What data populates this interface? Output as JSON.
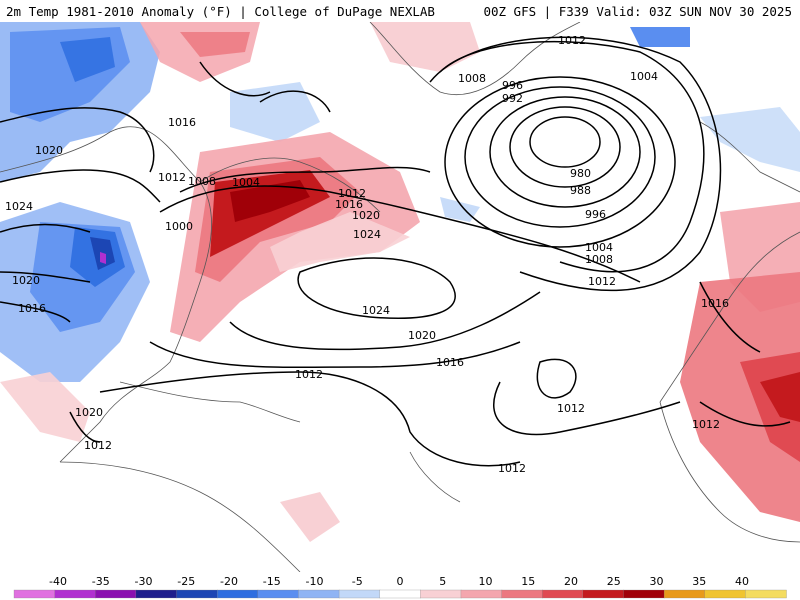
{
  "header": {
    "left_title": "2m Temp 1981-2010 Anomaly (°F) | College of DuPage NEXLAB",
    "right_title": "00Z GFS | F339 Valid: 03Z SUN NOV 30 2025"
  },
  "contour_labels": [
    "1012",
    "1008",
    "996",
    "992",
    "1004",
    "1016",
    "1020",
    "980",
    "988",
    "1008",
    "1012",
    "1004",
    "1000",
    "1024",
    "996",
    "1004",
    "1008",
    "1012",
    "1020",
    "1024",
    "1016",
    "1020",
    "1016",
    "1012",
    "1012",
    "1012",
    "1016",
    "1012",
    "1024",
    "1020",
    "1016",
    "1012",
    "1020",
    "1012"
  ],
  "colorbar": {
    "ticks": [
      "-40",
      "-35",
      "-30",
      "-25",
      "-20",
      "-15",
      "-10",
      "-5",
      "0",
      "5",
      "10",
      "15",
      "20",
      "25",
      "30",
      "35",
      "40"
    ],
    "colors": [
      "#e070e0",
      "#b030d0",
      "#8a10b0",
      "#1e1e8c",
      "#1c46b4",
      "#2e6ee0",
      "#5a8ef0",
      "#8fb4f4",
      "#c2d8f8",
      "#ffffff",
      "#f8d0d4",
      "#f4a6ae",
      "#ec7880",
      "#e04a52",
      "#c41a1e",
      "#a00008",
      "#e89a1a",
      "#f0c430",
      "#f4dc60"
    ]
  },
  "style": {
    "land_outline": "#555555",
    "contour": "#000000",
    "warm": "#e0464c",
    "warm_dark": "#b00010",
    "cool": "#5a84e6",
    "cool_dark": "#1e3ea8"
  }
}
